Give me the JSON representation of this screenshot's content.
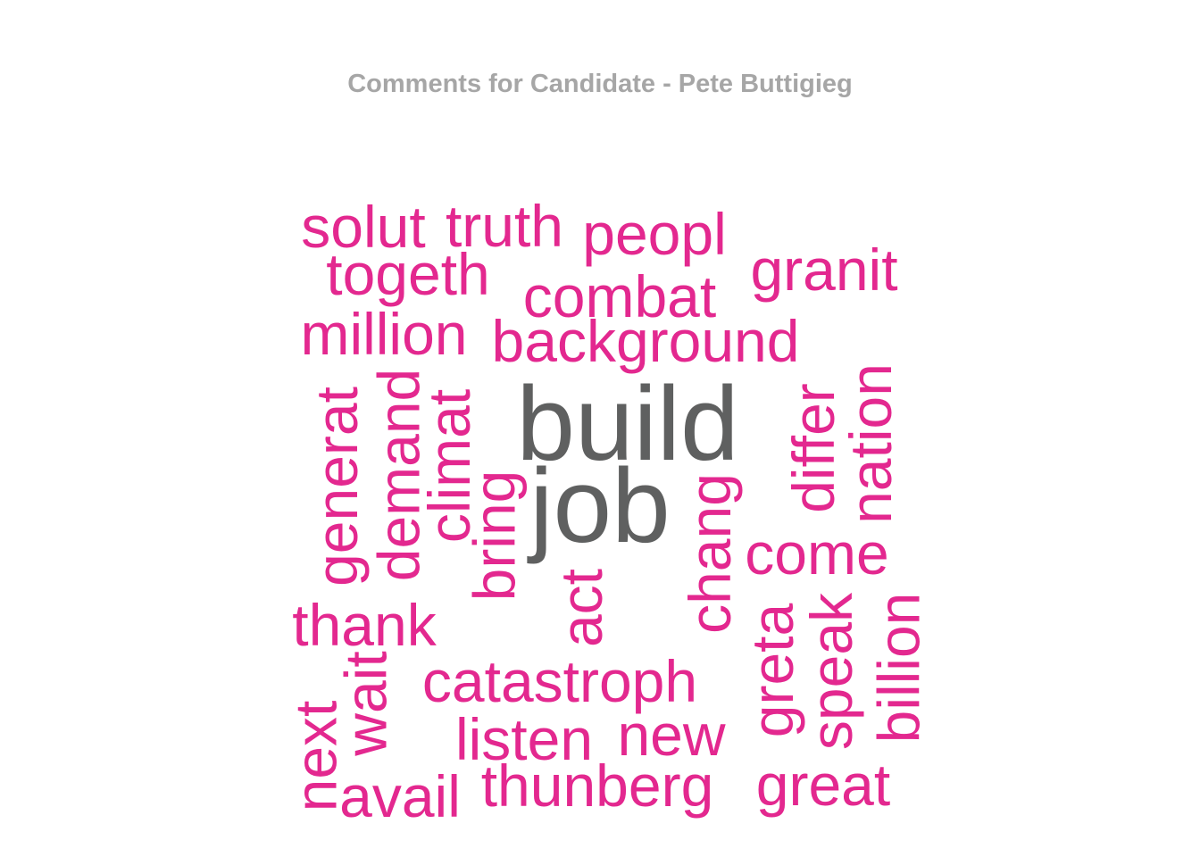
{
  "title": "Comments for Candidate - Pete Buttigieg",
  "colors": {
    "title": "#a6a6a6",
    "top_words": "#5f6060",
    "other_words": "#e3288f"
  },
  "words": [
    {
      "id": "build",
      "text": "build",
      "tier": "top",
      "vertical": false
    },
    {
      "id": "job",
      "text": "job",
      "tier": "top",
      "vertical": false
    },
    {
      "id": "solut",
      "text": "solut",
      "tier": "other",
      "vertical": false
    },
    {
      "id": "truth",
      "text": "truth",
      "tier": "other",
      "vertical": false
    },
    {
      "id": "peopl",
      "text": "peopl",
      "tier": "other",
      "vertical": false
    },
    {
      "id": "togeth",
      "text": "togeth",
      "tier": "other",
      "vertical": false
    },
    {
      "id": "granit",
      "text": "granit",
      "tier": "other",
      "vertical": false
    },
    {
      "id": "combat",
      "text": "combat",
      "tier": "other",
      "vertical": false
    },
    {
      "id": "million",
      "text": "million",
      "tier": "other",
      "vertical": false
    },
    {
      "id": "background",
      "text": "background",
      "tier": "other",
      "vertical": false
    },
    {
      "id": "generat",
      "text": "generat",
      "tier": "other",
      "vertical": true
    },
    {
      "id": "demand",
      "text": "demand",
      "tier": "other",
      "vertical": true
    },
    {
      "id": "climat",
      "text": "climat",
      "tier": "other",
      "vertical": true
    },
    {
      "id": "bring",
      "text": "bring",
      "tier": "other",
      "vertical": true
    },
    {
      "id": "differ",
      "text": "differ",
      "tier": "other",
      "vertical": true
    },
    {
      "id": "nation",
      "text": "nation",
      "tier": "other",
      "vertical": true
    },
    {
      "id": "chang",
      "text": "chang",
      "tier": "other",
      "vertical": true
    },
    {
      "id": "come",
      "text": "come",
      "tier": "other",
      "vertical": false
    },
    {
      "id": "act",
      "text": "act",
      "tier": "other",
      "vertical": true
    },
    {
      "id": "thank",
      "text": "thank",
      "tier": "other",
      "vertical": false
    },
    {
      "id": "greta",
      "text": "greta",
      "tier": "other",
      "vertical": true
    },
    {
      "id": "speak",
      "text": "speak",
      "tier": "other",
      "vertical": true
    },
    {
      "id": "billion",
      "text": "billion",
      "tier": "other",
      "vertical": true
    },
    {
      "id": "wait",
      "text": "wait",
      "tier": "other",
      "vertical": true
    },
    {
      "id": "catastroph",
      "text": "catastroph",
      "tier": "other",
      "vertical": false
    },
    {
      "id": "next",
      "text": "next",
      "tier": "other",
      "vertical": true
    },
    {
      "id": "listen",
      "text": "listen",
      "tier": "other",
      "vertical": false
    },
    {
      "id": "new",
      "text": "new",
      "tier": "other",
      "vertical": false
    },
    {
      "id": "thunberg",
      "text": "thunberg",
      "tier": "other",
      "vertical": false
    },
    {
      "id": "avail",
      "text": "avail",
      "tier": "other",
      "vertical": false
    },
    {
      "id": "great",
      "text": "great",
      "tier": "other",
      "vertical": false
    }
  ]
}
